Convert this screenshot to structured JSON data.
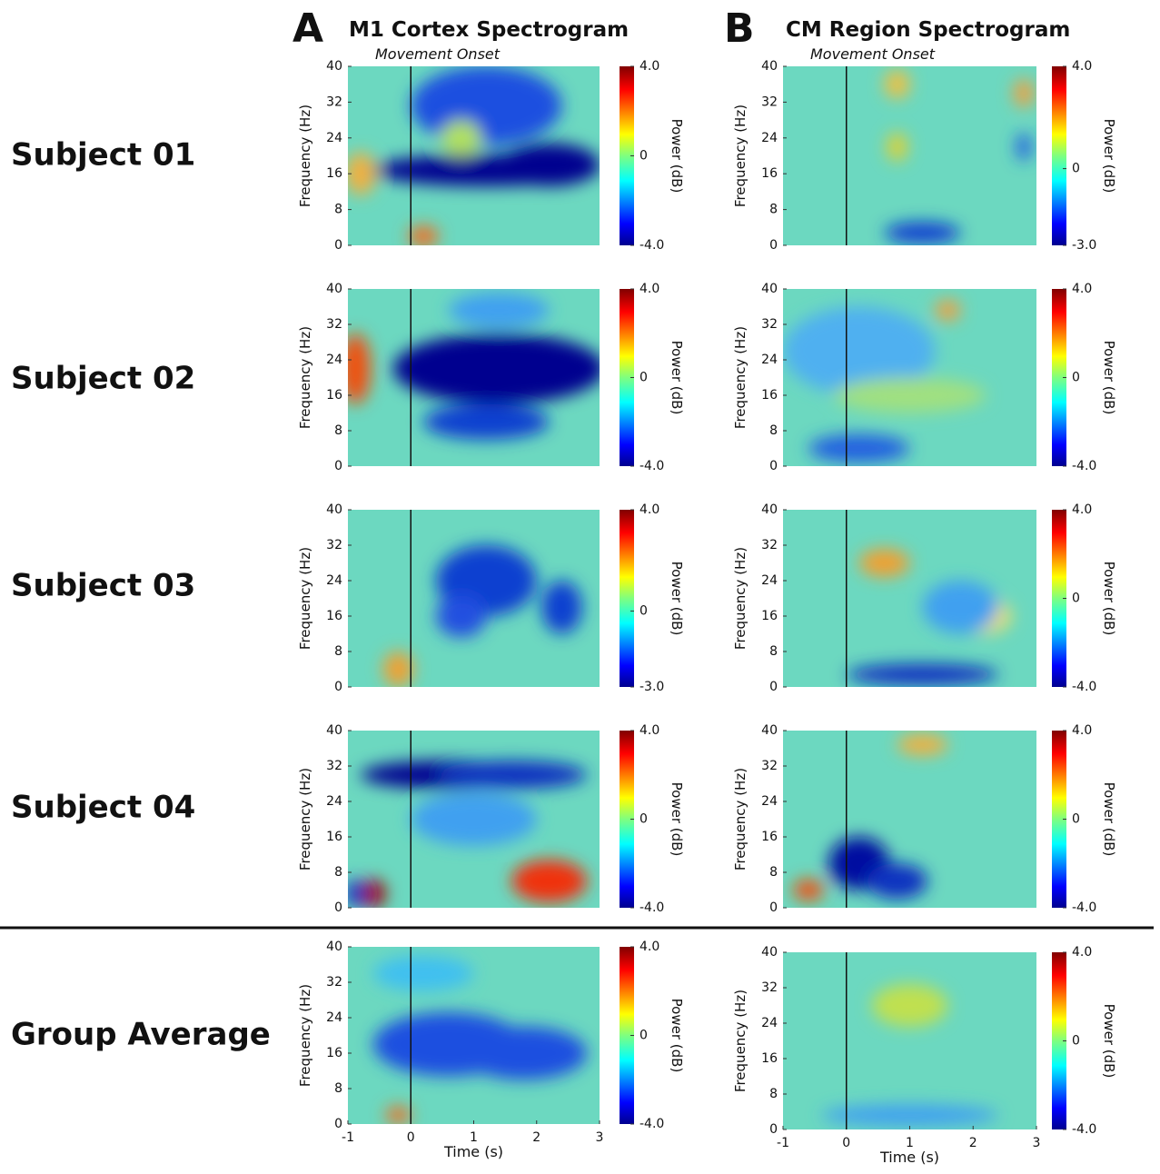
{
  "panels": [
    {
      "letter": "A",
      "title": "M1 Cortex Spectrogram"
    },
    {
      "letter": "B",
      "title": "CM Region Spectrogram"
    }
  ],
  "row_labels": [
    "Subject 01",
    "Subject 02",
    "Subject 03",
    "Subject 04",
    "Group Average"
  ],
  "chart_data": [
    {
      "type": "heatmap",
      "annotation": "Movement Onset",
      "ylabel": "Frequency (Hz)",
      "ylim": [
        0,
        40
      ],
      "yticks": [
        0,
        8,
        16,
        24,
        32,
        40
      ],
      "colorbar_label": "Power (dB)",
      "clim": [
        -4,
        4
      ],
      "cticks": [
        {
          "value": -4,
          "label": "-4.0"
        },
        0,
        {
          "value": 4,
          "label": "4.0"
        }
      ]
    },
    {
      "type": "heatmap",
      "annotation": "Movement Onset",
      "ylabel": "Frequency (Hz)",
      "ylim": [
        0,
        40
      ],
      "yticks": [
        0,
        8,
        16,
        24,
        32,
        40
      ],
      "colorbar_label": "Power (dB)",
      "clim": [
        -3,
        4
      ],
      "cticks": [
        {
          "value": -3,
          "label": "-3.0"
        },
        0,
        {
          "value": 4,
          "label": "4.0"
        }
      ]
    },
    {
      "type": "heatmap",
      "ylabel": "Frequency (Hz)",
      "ylim": [
        0,
        40
      ],
      "yticks": [
        0,
        8,
        16,
        24,
        32,
        40
      ],
      "colorbar_label": "Power (dB)",
      "clim": [
        -4,
        4
      ],
      "cticks": [
        {
          "value": -4,
          "label": "-4.0"
        },
        0,
        {
          "value": 4,
          "label": "4.0"
        }
      ]
    },
    {
      "type": "heatmap",
      "ylabel": "Frequency (Hz)",
      "ylim": [
        0,
        40
      ],
      "yticks": [
        0,
        8,
        16,
        24,
        32,
        40
      ],
      "colorbar_label": "Power (dB)",
      "clim": [
        -4,
        4
      ],
      "cticks": [
        {
          "value": -4,
          "label": "-4.0"
        },
        0,
        {
          "value": 4,
          "label": "4.0"
        }
      ]
    },
    {
      "type": "heatmap",
      "ylabel": "Frequency (Hz)",
      "ylim": [
        0,
        40
      ],
      "yticks": [
        0,
        8,
        16,
        24,
        32,
        40
      ],
      "colorbar_label": "Power (dB)",
      "clim": [
        -3,
        4
      ],
      "cticks": [
        {
          "value": -3,
          "label": "-3.0"
        },
        0,
        {
          "value": 4,
          "label": "4.0"
        }
      ]
    },
    {
      "type": "heatmap",
      "ylabel": "Frequency (Hz)",
      "ylim": [
        0,
        40
      ],
      "yticks": [
        0,
        8,
        16,
        24,
        32,
        40
      ],
      "colorbar_label": "Power (dB)",
      "clim": [
        -4,
        4
      ],
      "cticks": [
        {
          "value": -4,
          "label": "-4.0"
        },
        0,
        {
          "value": 4,
          "label": "4.0"
        }
      ]
    },
    {
      "type": "heatmap",
      "ylabel": "Frequency (Hz)",
      "ylim": [
        0,
        40
      ],
      "yticks": [
        0,
        8,
        16,
        24,
        32,
        40
      ],
      "colorbar_label": "Power (dB)",
      "clim": [
        -4,
        4
      ],
      "cticks": [
        {
          "value": -4,
          "label": "-4.0"
        },
        0,
        {
          "value": 4,
          "label": "4.0"
        }
      ]
    },
    {
      "type": "heatmap",
      "ylabel": "Frequency (Hz)",
      "ylim": [
        0,
        40
      ],
      "yticks": [
        0,
        8,
        16,
        24,
        32,
        40
      ],
      "colorbar_label": "Power (dB)",
      "clim": [
        -4,
        4
      ],
      "cticks": [
        {
          "value": -4,
          "label": "-4.0"
        },
        0,
        {
          "value": 4,
          "label": "4.0"
        }
      ]
    },
    {
      "type": "heatmap",
      "ylabel": "Frequency (Hz)",
      "ylim": [
        0,
        40
      ],
      "yticks": [
        0,
        8,
        16,
        24,
        32,
        40
      ],
      "xlabel": "Time (s)",
      "xlim": [
        -1,
        3
      ],
      "xticks": [
        -1,
        0,
        1,
        2,
        3
      ],
      "colorbar_label": "Power (dB)",
      "clim": [
        -4,
        4
      ],
      "cticks": [
        {
          "value": -4,
          "label": "-4.0"
        },
        0,
        {
          "value": 4,
          "label": "4.0"
        }
      ]
    },
    {
      "type": "heatmap",
      "ylabel": "Frequency (Hz)",
      "ylim": [
        0,
        40
      ],
      "yticks": [
        0,
        8,
        16,
        24,
        32,
        40
      ],
      "xlabel": "Time (s)",
      "xlim": [
        -1,
        3
      ],
      "xticks": [
        -1,
        0,
        1,
        2,
        3
      ],
      "colorbar_label": "Power (dB)",
      "clim": [
        -4,
        4
      ],
      "cticks": [
        {
          "value": -4,
          "label": "-4.0"
        },
        0,
        {
          "value": 4,
          "label": "4.0"
        }
      ]
    }
  ]
}
